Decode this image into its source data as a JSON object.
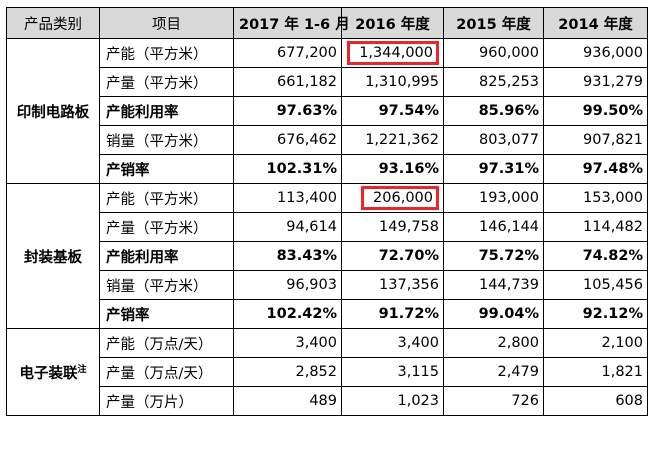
{
  "headers": [
    "产品类别",
    "项目",
    "2017 年 1-6 月",
    "2016 年度",
    "2015 年度",
    "2014 年度"
  ],
  "groups": [
    {
      "category": "印制电路板",
      "category_note": "",
      "rows": [
        {
          "label": "产能（平方米）",
          "bold": false,
          "values": [
            "677,200",
            "1,344,000",
            "960,000",
            "936,000"
          ],
          "highlight": [
            false,
            true,
            false,
            false
          ]
        },
        {
          "label": "产量（平方米）",
          "bold": false,
          "values": [
            "661,182",
            "1,310,995",
            "825,253",
            "931,279"
          ],
          "highlight": [
            false,
            false,
            false,
            false
          ]
        },
        {
          "label": "产能利用率",
          "bold": true,
          "values": [
            "97.63%",
            "97.54%",
            "85.96%",
            "99.50%"
          ],
          "highlight": [
            false,
            false,
            false,
            false
          ]
        },
        {
          "label": "销量（平方米）",
          "bold": false,
          "values": [
            "676,462",
            "1,221,362",
            "803,077",
            "907,821"
          ],
          "highlight": [
            false,
            false,
            false,
            false
          ]
        },
        {
          "label": "产销率",
          "bold": true,
          "values": [
            "102.31%",
            "93.16%",
            "97.31%",
            "97.48%"
          ],
          "highlight": [
            false,
            false,
            false,
            false
          ]
        }
      ]
    },
    {
      "category": "封装基板",
      "category_note": "",
      "rows": [
        {
          "label": "产能（平方米）",
          "bold": false,
          "values": [
            "113,400",
            "206,000",
            "193,000",
            "153,000"
          ],
          "highlight": [
            false,
            true,
            false,
            false
          ]
        },
        {
          "label": "产量（平方米）",
          "bold": false,
          "values": [
            "94,614",
            "149,758",
            "146,144",
            "114,482"
          ],
          "highlight": [
            false,
            false,
            false,
            false
          ]
        },
        {
          "label": "产能利用率",
          "bold": true,
          "values": [
            "83.43%",
            "72.70%",
            "75.72%",
            "74.82%"
          ],
          "highlight": [
            false,
            false,
            false,
            false
          ]
        },
        {
          "label": "销量（平方米）",
          "bold": false,
          "values": [
            "96,903",
            "137,356",
            "144,739",
            "105,456"
          ],
          "highlight": [
            false,
            false,
            false,
            false
          ]
        },
        {
          "label": "产销率",
          "bold": true,
          "values": [
            "102.42%",
            "91.72%",
            "99.04%",
            "92.12%"
          ],
          "highlight": [
            false,
            false,
            false,
            false
          ]
        }
      ]
    },
    {
      "category": "电子装联",
      "category_note": "注",
      "rows": [
        {
          "label": "产能（万点/天）",
          "bold": false,
          "values": [
            "3,400",
            "3,400",
            "2,800",
            "2,100"
          ],
          "highlight": [
            false,
            false,
            false,
            false
          ]
        },
        {
          "label": "产量（万点/天）",
          "bold": false,
          "values": [
            "2,852",
            "3,115",
            "2,479",
            "1,821"
          ],
          "highlight": [
            false,
            false,
            false,
            false
          ]
        },
        {
          "label": "产量（万片）",
          "bold": false,
          "values": [
            "489",
            "1,023",
            "726",
            "608"
          ],
          "highlight": [
            false,
            false,
            false,
            false
          ]
        }
      ]
    }
  ],
  "colors": {
    "header_bg": "#d9d9d9",
    "highlight_border": "#e8262b",
    "grid": "#000000"
  }
}
